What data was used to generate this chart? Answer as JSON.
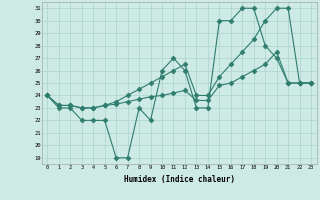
{
  "x": [
    0,
    1,
    2,
    3,
    4,
    5,
    6,
    7,
    8,
    9,
    10,
    11,
    12,
    13,
    14,
    15,
    16,
    17,
    18,
    19,
    20,
    21,
    22,
    23
  ],
  "line1": [
    24,
    23,
    23,
    22,
    22,
    22,
    19,
    19,
    23,
    22,
    26,
    27,
    26,
    23,
    23,
    30,
    30,
    31,
    31,
    28,
    27,
    25,
    25,
    25
  ],
  "line2": [
    24,
    23.2,
    23.2,
    23.0,
    23.0,
    23.2,
    23.3,
    23.5,
    23.7,
    23.9,
    24.0,
    24.2,
    24.4,
    23.6,
    23.6,
    24.8,
    25.0,
    25.5,
    26.0,
    26.5,
    27.5,
    25.0,
    25.0,
    25.0
  ],
  "line3": [
    24,
    23.2,
    23.2,
    23.0,
    23.0,
    23.2,
    23.5,
    24.0,
    24.5,
    25.0,
    25.5,
    26.0,
    26.5,
    24.0,
    24.0,
    25.5,
    26.5,
    27.5,
    28.5,
    30.0,
    31.0,
    31.0,
    25.0,
    25.0
  ],
  "color": "#2e7d6e",
  "bg_color": "#ceeae4",
  "grid_color": "#aad4cc",
  "xlabel": "Humidex (Indice chaleur)",
  "ylim": [
    18.5,
    31.5
  ],
  "xlim": [
    -0.5,
    23.5
  ],
  "yticks": [
    19,
    20,
    21,
    22,
    23,
    24,
    25,
    26,
    27,
    28,
    29,
    30,
    31
  ],
  "xticks": [
    0,
    1,
    2,
    3,
    4,
    5,
    6,
    7,
    8,
    9,
    10,
    11,
    12,
    13,
    14,
    15,
    16,
    17,
    18,
    19,
    20,
    21,
    22,
    23
  ]
}
